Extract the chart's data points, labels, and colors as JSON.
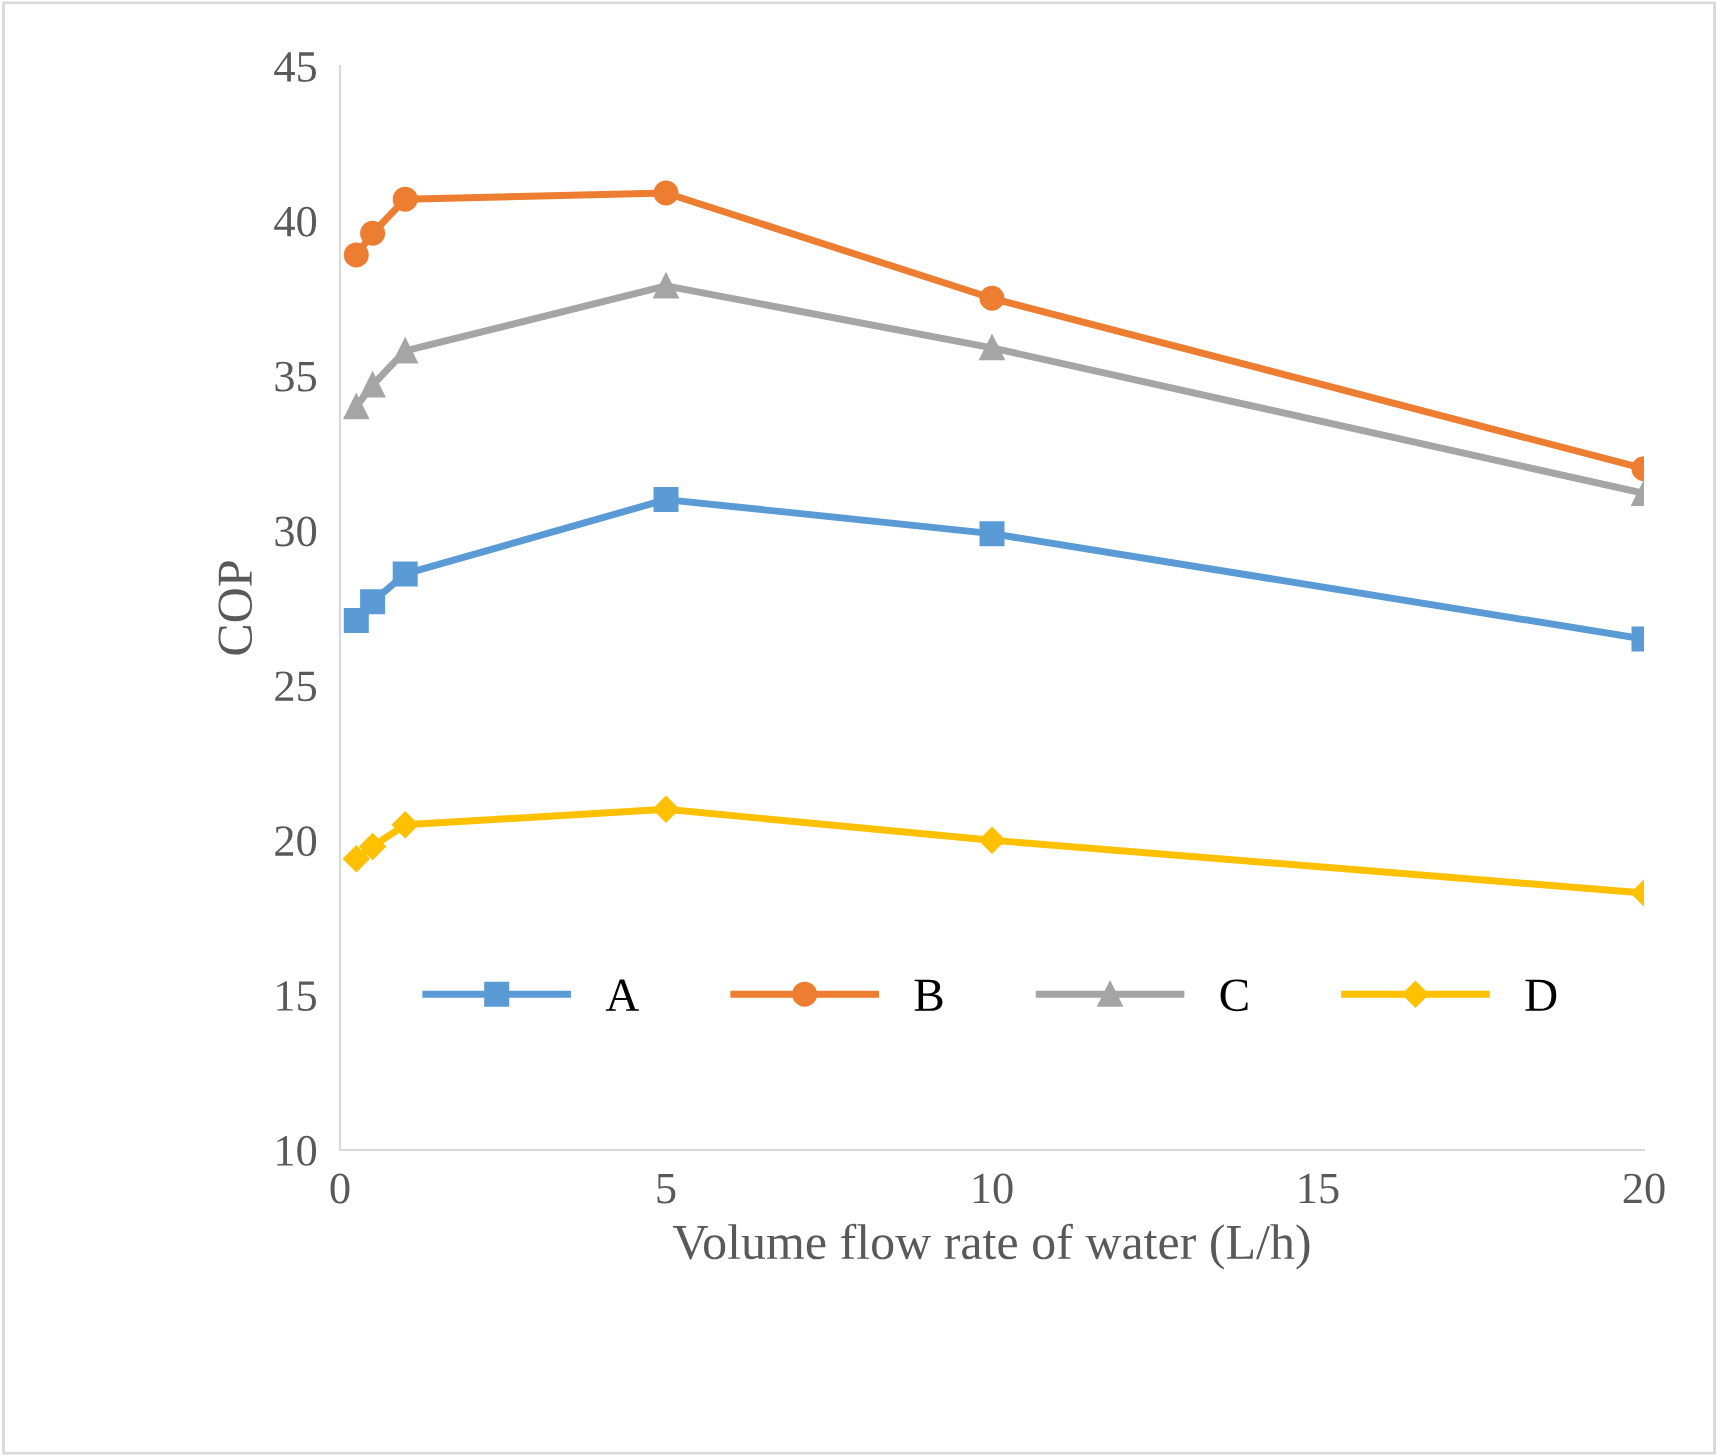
{
  "chart_data": {
    "type": "line",
    "xlabel": "Volume flow rate of water (L/h)",
    "ylabel": "COP",
    "x": [
      0.25,
      0.5,
      1,
      5,
      10,
      20
    ],
    "series": [
      {
        "name": "A",
        "color": "#5b9bd5",
        "marker": "square",
        "values": [
          27.1,
          27.7,
          28.6,
          31.0,
          29.9,
          26.5
        ]
      },
      {
        "name": "B",
        "color": "#ed7d31",
        "marker": "circle",
        "values": [
          38.9,
          39.6,
          40.7,
          40.9,
          37.5,
          32.0
        ]
      },
      {
        "name": "C",
        "color": "#a5a5a5",
        "marker": "triangle",
        "values": [
          34.0,
          34.7,
          35.8,
          37.9,
          35.9,
          31.2
        ]
      },
      {
        "name": "D",
        "color": "#ffc000",
        "marker": "diamond",
        "values": [
          19.4,
          19.8,
          20.5,
          21.0,
          20.0,
          18.3
        ]
      }
    ],
    "xlim": [
      0,
      20
    ],
    "xticks": [
      0,
      5,
      10,
      15,
      20
    ],
    "ylim": [
      10,
      45
    ],
    "yticks": [
      10,
      15,
      20,
      25,
      30,
      35,
      40,
      45
    ],
    "grid": false,
    "legend": "bottom",
    "line_style": "solid"
  }
}
